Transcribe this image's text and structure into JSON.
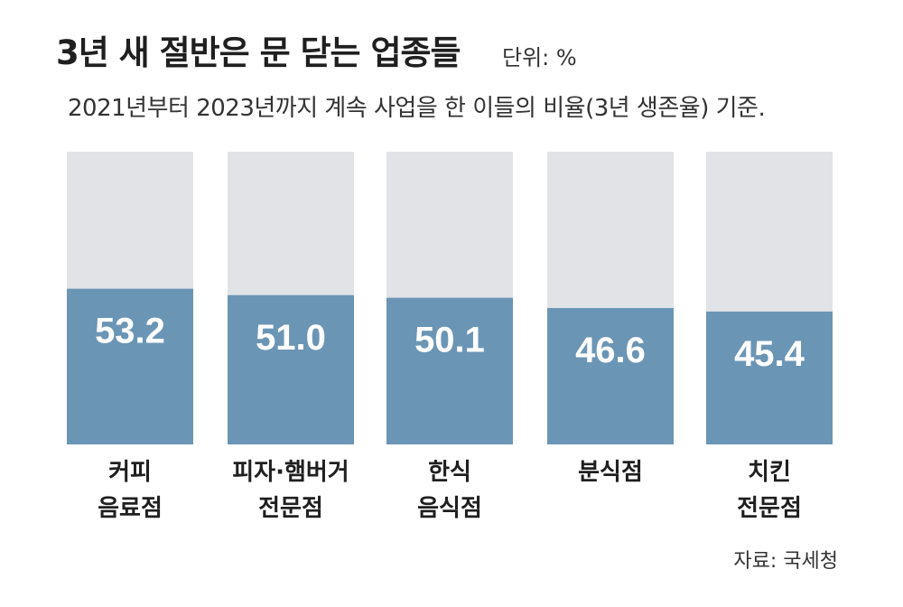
{
  "header": {
    "title": "3년 새 절반은 문 닫는 업종들",
    "unit": "단위: %",
    "subtitle": "2021년부터 2023년까지 계속 사업을 한 이들의 비율(3년 생존율) 기준."
  },
  "footer": {
    "source": "자료: 국세청"
  },
  "colors": {
    "bar_fill": "#6b95b5",
    "bar_background": "#e1e3e7",
    "value_text": "#ffffff",
    "label_text": "#1f1f1f"
  },
  "chart_data": {
    "type": "bar",
    "categories": [
      [
        "커피",
        "음료점"
      ],
      [
        "피자·햄버거",
        "전문점"
      ],
      [
        "한식",
        "음식점"
      ],
      [
        "분식점"
      ],
      [
        "치킨",
        "전문점"
      ]
    ],
    "values": [
      53.2,
      51.0,
      50.1,
      46.6,
      45.4
    ],
    "value_labels": [
      "53.2",
      "51.0",
      "50.1",
      "46.6",
      "45.4"
    ],
    "ylim": [
      0,
      100
    ],
    "grid": false,
    "legend": "none"
  }
}
